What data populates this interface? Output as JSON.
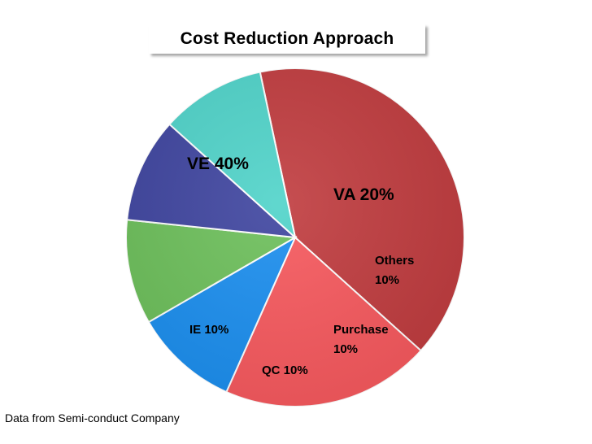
{
  "chart_data": {
    "type": "pie",
    "title": "Cost Reduction Approach",
    "slices": [
      {
        "name": "VE",
        "value": 40,
        "color": "#c03b3e",
        "label_lines": [
          "VE  40%"
        ]
      },
      {
        "name": "VA",
        "value": 20,
        "color": "#f7585d",
        "label_lines": [
          "VA  20%"
        ]
      },
      {
        "name": "Others",
        "value": 10,
        "color": "#1a8eef",
        "label_lines": [
          "Others",
          "10%"
        ]
      },
      {
        "name": "Purchase",
        "value": 10,
        "color": "#6cbf5a",
        "label_lines": [
          "Purchase",
          "10%"
        ]
      },
      {
        "name": "QC",
        "value": 10,
        "color": "#3e449f",
        "label_lines": [
          "QC 10%"
        ]
      },
      {
        "name": "IE",
        "value": 10,
        "color": "#4fd3c9",
        "label_lines": [
          "IE  10%"
        ]
      }
    ],
    "legend": "none"
  },
  "footer": {
    "source": "Data from Semi-conduct Company"
  }
}
